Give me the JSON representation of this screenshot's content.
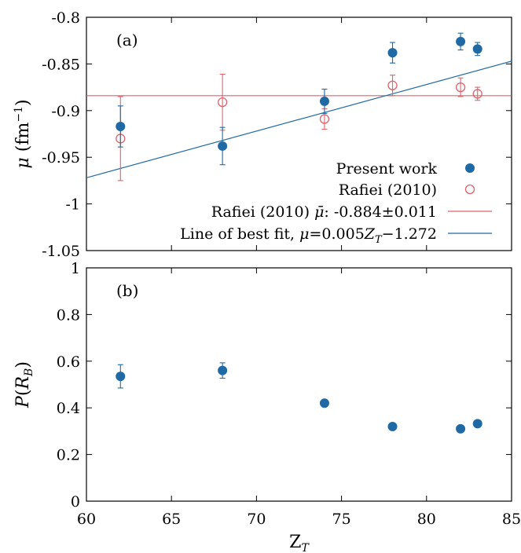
{
  "chart_data": [
    {
      "type": "scatter",
      "panel_label": "(a)",
      "ylabel": "μ (fm⁻¹)",
      "xlim": [
        60,
        85
      ],
      "ylim": [
        -1.05,
        -0.8
      ],
      "y_ticks": [
        -0.8,
        -0.85,
        -0.9,
        -0.95,
        -1,
        -1.05
      ],
      "y_tick_labels": [
        "-0.8",
        "-0.85",
        "-0.9",
        "-0.95",
        "-1",
        "-1.05"
      ],
      "legend_position": "bottom-right",
      "series": [
        {
          "name": "Present work",
          "marker": "filled-circle",
          "color": "#1f6aa5",
          "x": [
            62,
            68,
            74,
            78,
            82,
            83
          ],
          "y": [
            -0.917,
            -0.938,
            -0.89,
            -0.838,
            -0.826,
            -0.834
          ],
          "err": [
            0.022,
            0.02,
            0.013,
            0.011,
            0.009,
            0.007
          ]
        },
        {
          "name": "Rafiei (2010)",
          "marker": "open-circle",
          "color": "#e0626b",
          "x": [
            62,
            68,
            74,
            78,
            82,
            83
          ],
          "y": [
            -0.93,
            -0.891,
            -0.909,
            -0.873,
            -0.875,
            -0.882
          ],
          "err": [
            0.045,
            0.03,
            0.011,
            0.011,
            0.01,
            0.007
          ]
        }
      ],
      "lines": [
        {
          "name": "Rafiei (2010) μ̄: -0.884±0.011",
          "kind": "horizontal",
          "y": -0.884,
          "color": "#e0626b"
        },
        {
          "name": "Line of best fit, μ=0.005Z_T−1.272",
          "kind": "linear",
          "slope": 0.005,
          "intercept": -1.272,
          "color": "#1f6aa5"
        }
      ]
    },
    {
      "type": "scatter",
      "panel_label": "(b)",
      "xlabel": "Z_T",
      "ylabel": "P(R_B)",
      "xlim": [
        60,
        85
      ],
      "ylim": [
        0,
        1
      ],
      "x_ticks": [
        60,
        65,
        70,
        75,
        80,
        85
      ],
      "x_tick_labels": [
        "60",
        "65",
        "70",
        "75",
        "80",
        "85"
      ],
      "y_ticks": [
        0,
        0.2,
        0.4,
        0.6,
        0.8,
        1
      ],
      "y_tick_labels": [
        "0",
        "0.2",
        "0.4",
        "0.6",
        "0.8",
        "1"
      ],
      "series": [
        {
          "marker": "filled-circle",
          "color": "#1f6aa5",
          "x": [
            62,
            68,
            74,
            78,
            82,
            83
          ],
          "y": [
            0.535,
            0.56,
            0.42,
            0.32,
            0.31,
            0.332
          ],
          "err": [
            0.05,
            0.033,
            0.012,
            0.008,
            0.006,
            0.006
          ]
        }
      ]
    }
  ]
}
